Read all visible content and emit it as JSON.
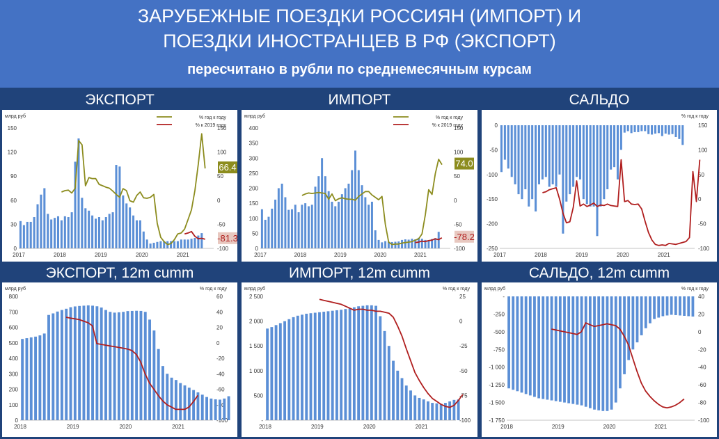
{
  "header": {
    "line1": "ЗАРУБЕЖНЫЕ ПОЕЗДКИ РОССИЯН (ИМПОРТ) И",
    "line2": "ПОЕЗДКИ ИНОСТРАНЦЕВ В РФ (ЭКСПОРТ)",
    "subtitle": "пересчитано в рубли по среднемесячным курсам"
  },
  "colors": {
    "bar": "#5b8fd6",
    "olive": "#8c8c1e",
    "red": "#b01e1e",
    "background": "#20437a",
    "header": "#4472c4"
  },
  "chart_data": [
    {
      "id": "export",
      "type": "bar",
      "title": "ЭКСПОРТ",
      "ylabel_left": "млрд руб",
      "ylim_left": [
        0,
        150
      ],
      "yticks_left": [
        "0",
        "30",
        "60",
        "90",
        "120",
        "150"
      ],
      "ylim_right": [
        -100,
        150
      ],
      "yticks_right": [
        "-100",
        "-50",
        "0",
        "50",
        "100",
        "150"
      ],
      "xlim": [
        2017,
        2021.75
      ],
      "xticks": [
        "2017",
        "2018",
        "2019",
        "2020",
        "2021"
      ],
      "x_start": 2017.0,
      "x_step": 0.0833333,
      "values": [
        34,
        29,
        33,
        33,
        39,
        55,
        67,
        75,
        43,
        36,
        38,
        40,
        35,
        40,
        39,
        45,
        108,
        137,
        63,
        50,
        47,
        41,
        37,
        39,
        35,
        39,
        43,
        45,
        104,
        102,
        66,
        56,
        51,
        41,
        35,
        35,
        21,
        11,
        6,
        7,
        8,
        9,
        9,
        9,
        9,
        9,
        9,
        11,
        11,
        11,
        12,
        13,
        16,
        19
      ],
      "series": [
        {
          "name": "% год к году",
          "axis": "right",
          "color": "olive",
          "x_start": 2018.0,
          "values": [
            17,
            20,
            21,
            15,
            25,
            124,
            115,
            30,
            47,
            45,
            45,
            33,
            30,
            27,
            25,
            19,
            12,
            6,
            24,
            20,
            -1,
            -4,
            10,
            17,
            5,
            4,
            6,
            12,
            -48,
            -77,
            -86,
            -92,
            -90,
            -82,
            -70,
            -68,
            -60,
            -40,
            -20,
            20,
            75,
            138,
            66
          ]
        },
        {
          "name": "% к 2019 году",
          "axis": "right",
          "color": "red",
          "x_start": 2021.0,
          "values": [
            -70,
            -68,
            -65,
            -75,
            -80,
            -79,
            -81
          ]
        }
      ],
      "last_labels": {
        "olive": "66.4",
        "red": "-81.3"
      }
    },
    {
      "id": "import",
      "type": "bar",
      "title": "ИМПОРТ",
      "ylabel_left": "млрд руб",
      "ylim_left": [
        0,
        400
      ],
      "yticks_left": [
        "0",
        "50",
        "100",
        "150",
        "200",
        "250",
        "300",
        "350",
        "400"
      ],
      "ylim_right": [
        -100,
        150
      ],
      "yticks_right": [
        "-100",
        "-50",
        "0",
        "50",
        "100",
        "150"
      ],
      "xlim": [
        2017,
        2021.75
      ],
      "xticks": [
        "2017",
        "2018",
        "2019",
        "2020",
        "2021"
      ],
      "x_start": 2017.0,
      "x_step": 0.0833333,
      "values": [
        130,
        95,
        105,
        132,
        162,
        200,
        215,
        170,
        128,
        130,
        145,
        120,
        145,
        150,
        140,
        145,
        205,
        240,
        300,
        240,
        190,
        155,
        140,
        155,
        180,
        200,
        215,
        260,
        325,
        260,
        210,
        170,
        145,
        155,
        60,
        28,
        20,
        24,
        22,
        21,
        22,
        23,
        28,
        30,
        29,
        32,
        30,
        35,
        32,
        28,
        26,
        31,
        34,
        55
      ],
      "series": [
        {
          "name": "% год к году",
          "axis": "right",
          "color": "olive",
          "x_start": 2018.0,
          "values": [
            10,
            13,
            15,
            14,
            15,
            16,
            15,
            14,
            2,
            13,
            -1,
            3,
            5,
            3,
            2,
            2,
            0,
            8,
            13,
            18,
            18,
            11,
            6,
            1,
            8,
            -50,
            -87,
            -92,
            -91,
            -91,
            -89,
            -88,
            -87,
            -86,
            -83,
            -80,
            -70,
            -30,
            22,
            12,
            55,
            85,
            74
          ]
        },
        {
          "name": "% к 2019 году",
          "axis": "right",
          "color": "red",
          "x_start": 2020.83,
          "values": [
            -88,
            -87,
            -85,
            -86,
            -84,
            -83,
            -80,
            -82,
            -78
          ]
        }
      ],
      "last_labels": {
        "olive": "74.0",
        "red": "-78.2"
      }
    },
    {
      "id": "balance",
      "type": "bar",
      "title": "САЛЬДО",
      "ylabel_left": "",
      "ylim_left": [
        -250,
        0
      ],
      "yticks_left": [
        "-250",
        "-200",
        "-150",
        "-100",
        "-50",
        "0"
      ],
      "ylim_right": [
        -100,
        150
      ],
      "yticks_right": [
        "-100",
        "-50",
        "0",
        "50",
        "100",
        "150"
      ],
      "xlim": [
        2017,
        2021.75
      ],
      "xticks": [
        "2017",
        "2018",
        "2019",
        "2020",
        "2021"
      ],
      "x_start": 2017.0,
      "x_step": 0.0833333,
      "values": [
        -95,
        -70,
        -88,
        -105,
        -120,
        -140,
        -150,
        -130,
        -165,
        -150,
        -175,
        -120,
        -110,
        -105,
        -125,
        -120,
        -125,
        -100,
        -220,
        -155,
        -140,
        -125,
        -105,
        -110,
        -150,
        -160,
        -165,
        -165,
        -225,
        -165,
        -150,
        -130,
        -90,
        -85,
        -110,
        -50,
        -15,
        -12,
        -16,
        -14,
        -14,
        -12,
        -12,
        -18,
        -19,
        -17,
        -16,
        -22,
        -17,
        -19,
        -18,
        -24,
        -28,
        -40
      ],
      "series": [
        {
          "name": "% год к году",
          "axis": "right",
          "color": "red",
          "x_start": 2018.0,
          "values": [
            13,
            15,
            19,
            21,
            23,
            0,
            -29,
            -48,
            -46,
            -17,
            37,
            -14,
            -10,
            -15,
            -12,
            -8,
            -15,
            -12,
            -13,
            -10,
            -13,
            -14,
            -15,
            80,
            -5,
            -3,
            -10,
            -11,
            -10,
            -20,
            -45,
            -68,
            -83,
            -92,
            -94,
            -93,
            -94,
            -90,
            -91,
            -92,
            -90,
            -88,
            -86,
            -78,
            56,
            -5,
            80
          ]
        }
      ],
      "last_labels": {}
    },
    {
      "id": "export12",
      "type": "bar",
      "title": "ЭКСПОРТ, 12m cumm",
      "ylabel_left": "млрд руб",
      "ylim_left": [
        0,
        800
      ],
      "yticks_left": [
        "0",
        "100",
        "200",
        "300",
        "400",
        "500",
        "600",
        "700",
        "800"
      ],
      "ylabel_right": "% год к году",
      "ylim_right": [
        -100,
        60
      ],
      "yticks_right": [
        "-100",
        "-80",
        "-60",
        "-40",
        "-20",
        "0",
        "20",
        "40",
        "60"
      ],
      "xlim": [
        2018,
        2021.66
      ],
      "xticks": [
        "2018",
        "2019",
        "2020",
        "2021"
      ],
      "x_start": 2018.0,
      "x_step": 0.0833333,
      "values": [
        525,
        530,
        535,
        540,
        548,
        560,
        680,
        690,
        702,
        712,
        720,
        730,
        735,
        738,
        740,
        742,
        740,
        736,
        728,
        712,
        700,
        695,
        697,
        700,
        705,
        706,
        707,
        706,
        700,
        650,
        580,
        460,
        350,
        300,
        275,
        260,
        240,
        225,
        210,
        195,
        180,
        165,
        150,
        140,
        135,
        133,
        140,
        155
      ],
      "series": [
        {
          "name": "% год к году",
          "axis": "right",
          "color": "red",
          "x_start": 2018.83,
          "values": [
            33,
            32,
            31,
            30,
            28,
            26,
            22,
            -1,
            -2,
            -3,
            -4,
            -5,
            -6,
            -7,
            -8,
            -10,
            -15,
            -25,
            -40,
            -52,
            -60,
            -68,
            -75,
            -80,
            -83,
            -86,
            -86,
            -86,
            -83,
            -76,
            -68
          ]
        }
      ],
      "last_labels": {}
    },
    {
      "id": "import12",
      "type": "bar",
      "title": "ИМПОРТ, 12m cumm",
      "ylabel_left": "млрд руб",
      "ylim_left": [
        0,
        2500
      ],
      "yticks_left": [
        "-",
        "500",
        "1 000",
        "1 500",
        "2 000",
        "2 500"
      ],
      "ylabel_right": "% год к году",
      "ylim_right": [
        -100,
        25
      ],
      "yticks_right": [
        "-100",
        "-75",
        "-50",
        "-25",
        "0",
        "25"
      ],
      "xlim": [
        2018,
        2021.66
      ],
      "xticks": [
        "2018",
        "2019",
        "2020",
        "2021"
      ],
      "x_start": 2018.0,
      "x_step": 0.0833333,
      "values": [
        1850,
        1880,
        1920,
        1960,
        2000,
        2040,
        2080,
        2110,
        2130,
        2150,
        2160,
        2170,
        2180,
        2190,
        2200,
        2210,
        2220,
        2230,
        2245,
        2260,
        2280,
        2300,
        2310,
        2320,
        2320,
        2310,
        2100,
        1800,
        1500,
        1200,
        1000,
        850,
        700,
        600,
        500,
        450,
        420,
        380,
        350,
        340,
        330,
        350,
        380,
        410,
        420
      ],
      "series": [
        {
          "name": "% год к году",
          "axis": "right",
          "color": "red",
          "x_start": 2019.0,
          "values": [
            22,
            21,
            20,
            19,
            18,
            17,
            15,
            13,
            11,
            12,
            12,
            11,
            11,
            10,
            10,
            9,
            8,
            4,
            -5,
            -15,
            -28,
            -40,
            -52,
            -60,
            -67,
            -73,
            -78,
            -81,
            -84,
            -86,
            -87,
            -85,
            -80,
            -74
          ]
        }
      ],
      "last_labels": {}
    },
    {
      "id": "balance12",
      "type": "bar",
      "title": "САЛЬДО, 12m cumm",
      "ylabel_left": "млрд руб",
      "ylim_left": [
        -1750,
        0
      ],
      "yticks_left": [
        "-1 750",
        "-1 500",
        "-1 250",
        "-1 000",
        "-750",
        "-500",
        "-250",
        "-"
      ],
      "ylabel_right": "% год к году",
      "ylim_right": [
        -100,
        40
      ],
      "yticks_right": [
        "-100",
        "-80",
        "-60",
        "-40",
        "-20",
        "0",
        "20",
        "40"
      ],
      "xlim": [
        2018,
        2021.66
      ],
      "xticks": [
        "2018",
        "2019",
        "2020",
        "2021"
      ],
      "x_start": 2018.0,
      "x_step": 0.0833333,
      "values": [
        -1300,
        -1320,
        -1340,
        -1360,
        -1380,
        -1400,
        -1420,
        -1440,
        -1450,
        -1460,
        -1470,
        -1480,
        -1490,
        -1500,
        -1510,
        -1520,
        -1530,
        -1540,
        -1560,
        -1580,
        -1600,
        -1610,
        -1620,
        -1620,
        -1600,
        -1500,
        -1300,
        -1100,
        -900,
        -750,
        -650,
        -550,
        -450,
        -380,
        -320,
        -300,
        -280,
        -270,
        -260,
        -265,
        -270,
        -275,
        -280,
        -285
      ],
      "series": [
        {
          "name": "% год к году",
          "axis": "right",
          "color": "red",
          "x_start": 2018.83,
          "values": [
            3,
            2,
            1,
            0,
            -1,
            -2,
            -3,
            0,
            10,
            8,
            6,
            7,
            8,
            9,
            8,
            7,
            3,
            -5,
            -15,
            -30,
            -45,
            -58,
            -67,
            -73,
            -78,
            -82,
            -85,
            -86,
            -85,
            -83,
            -80,
            -76
          ]
        }
      ],
      "last_labels": {}
    }
  ]
}
